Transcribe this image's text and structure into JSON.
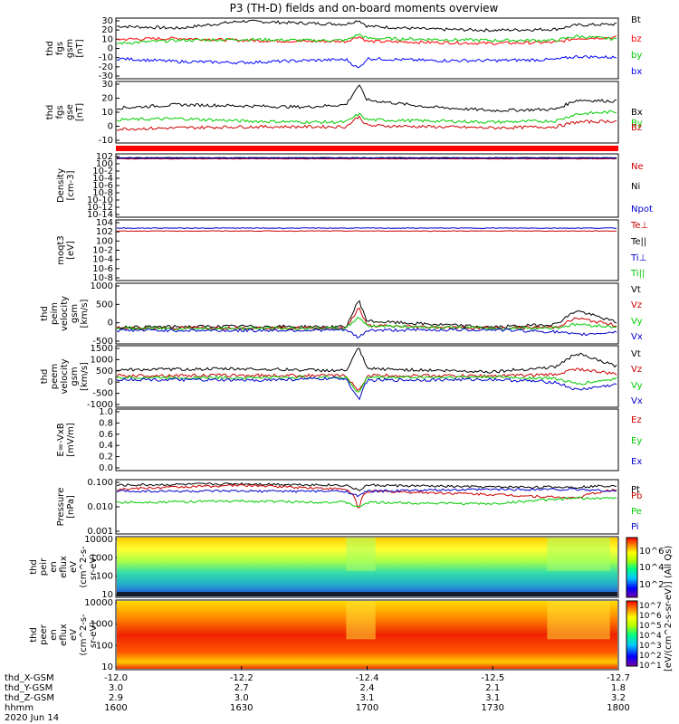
{
  "title": "P3 (TH-D) fields and on-board moments overview",
  "chart_data": {
    "type": "line",
    "title": "P3 (TH-D) fields and on-board moments overview",
    "panels": [
      {
        "id": "fgs_gsm",
        "ylabel": [
          "thd",
          "fgs",
          "gsm",
          "[nT]"
        ],
        "ylim": [
          -30,
          30
        ],
        "yticks": [
          "30",
          "20",
          "10",
          "0",
          "-10",
          "-20",
          "-30"
        ],
        "legend": [
          {
            "label": "Bt",
            "color": "#000000"
          },
          {
            "label": "bz",
            "color": "#ff0000"
          },
          {
            "label": "by",
            "color": "#00cc00"
          },
          {
            "label": "bx",
            "color": "#0000ff"
          }
        ],
        "series": [
          {
            "name": "Bt",
            "color": "#000000",
            "x": [
              "1600",
              "1615",
              "1630",
              "1645",
              "1655",
              "1658",
              "1700",
              "1715",
              "1730",
              "1745",
              "1750",
              "1800"
            ],
            "values": [
              22,
              20,
              27,
              25,
              24,
              28,
              22,
              19,
              18,
              19,
              23,
              24
            ]
          },
          {
            "name": "bz",
            "color": "#ff0000",
            "x": [
              "1600",
              "1615",
              "1630",
              "1645",
              "1655",
              "1658",
              "1700",
              "1715",
              "1730",
              "1745",
              "1750",
              "1800"
            ],
            "values": [
              9,
              10,
              8,
              7,
              7,
              12,
              7,
              6,
              5,
              6,
              10,
              11
            ]
          },
          {
            "name": "by",
            "color": "#00cc00",
            "x": [
              "1600",
              "1615",
              "1630",
              "1645",
              "1655",
              "1658",
              "1700",
              "1715",
              "1730",
              "1745",
              "1750",
              "1800"
            ],
            "values": [
              5,
              8,
              9,
              8,
              8,
              14,
              10,
              9,
              8,
              8,
              12,
              9
            ]
          },
          {
            "name": "bx",
            "color": "#0000ff",
            "x": [
              "1600",
              "1615",
              "1630",
              "1645",
              "1655",
              "1658",
              "1700",
              "1715",
              "1730",
              "1745",
              "1750",
              "1800"
            ],
            "values": [
              -10,
              -13,
              -14,
              -12,
              -11,
              -20,
              -10,
              -12,
              -12,
              -11,
              -8,
              -9
            ]
          }
        ]
      },
      {
        "id": "fgs_gse",
        "ylabel": [
          "thd",
          "fgs",
          "gse",
          "[nT]"
        ],
        "ylim": [
          -15,
          38
        ],
        "yticks": [
          "30",
          "20",
          "10",
          "0",
          "-10"
        ],
        "legend": [
          {
            "label": "Bx",
            "color": "#000000"
          },
          {
            "label": "By",
            "color": "#00cc00"
          },
          {
            "label": "Bz",
            "color": "#cc0000"
          }
        ],
        "series": [
          {
            "name": "Bx",
            "color": "#000000",
            "x": [
              "1600",
              "1615",
              "1630",
              "1645",
              "1655",
              "1658",
              "1700",
              "1715",
              "1730",
              "1745",
              "1750",
              "1800"
            ],
            "values": [
              15,
              18,
              17,
              16,
              18,
              35,
              22,
              16,
              13,
              14,
              22,
              21
            ]
          },
          {
            "name": "By",
            "color": "#00cc00",
            "x": [
              "1600",
              "1615",
              "1630",
              "1645",
              "1655",
              "1658",
              "1700",
              "1715",
              "1730",
              "1745",
              "1750",
              "1800"
            ],
            "values": [
              5,
              6,
              4,
              3,
              3,
              10,
              5,
              4,
              3,
              4,
              10,
              12
            ]
          },
          {
            "name": "Bz",
            "color": "#cc0000",
            "x": [
              "1600",
              "1615",
              "1630",
              "1645",
              "1655",
              "1658",
              "1700",
              "1715",
              "1730",
              "1745",
              "1750",
              "1800"
            ],
            "values": [
              -3,
              -2,
              -1,
              -1,
              -1,
              8,
              0,
              -1,
              -2,
              -1,
              3,
              4
            ]
          }
        ]
      },
      {
        "id": "density",
        "ylabel": [
          "Density",
          "[cm-3]"
        ],
        "log": true,
        "yticks": [
          "10^2",
          "10^0",
          "10^-2",
          "10^-4",
          "10^-6",
          "10^-8",
          "10^-10",
          "10^-12",
          "10^-14"
        ],
        "legend": [
          {
            "label": "Ne",
            "color": "#cc0000"
          },
          {
            "label": "Ni",
            "color": "#000000"
          },
          {
            "label": "Npot",
            "color": "#0000cc"
          }
        ],
        "series": [
          {
            "name": "Ne",
            "color": "#cc0000",
            "x": [
              "1600",
              "1800"
            ],
            "values": [
              10,
              10
            ]
          },
          {
            "name": "Ni",
            "color": "#000000",
            "x": [
              "1600",
              "1800"
            ],
            "values": [
              20,
              20
            ]
          },
          {
            "name": "Npot",
            "color": "#0000cc",
            "x": [
              "1600",
              "1800"
            ],
            "values": [
              15,
              15
            ]
          }
        ]
      },
      {
        "id": "temp",
        "ylabel": [
          "moqt3",
          "[eV]"
        ],
        "log": true,
        "yticks": [
          "10^4",
          "10^2",
          "10^0",
          "10^-2",
          "10^-4",
          "10^-6",
          "10^-8"
        ],
        "legend": [
          {
            "label": "Te⊥",
            "color": "#cc0000"
          },
          {
            "label": "Te||",
            "color": "#000000"
          },
          {
            "label": "Ti⊥",
            "color": "#0000cc"
          },
          {
            "label": "Ti||",
            "color": "#00cc00"
          }
        ],
        "series": [
          {
            "name": "Te⊥",
            "color": "#cc0000",
            "x": [
              "1600",
              "1800"
            ],
            "values": [
              100,
              100
            ]
          },
          {
            "name": "Ti⊥",
            "color": "#0000cc",
            "x": [
              "1600",
              "1800"
            ],
            "values": [
              400,
              400
            ]
          }
        ]
      },
      {
        "id": "peim_vel",
        "ylabel": [
          "thd",
          "peim",
          "velocity",
          "gsm",
          "[km/s]"
        ],
        "ylim": [
          -500,
          1500
        ],
        "yticks": [
          "1000",
          "500",
          "0",
          "-500"
        ],
        "legend": [
          {
            "label": "Vt",
            "color": "#000000"
          },
          {
            "label": "Vz",
            "color": "#cc0000"
          },
          {
            "label": "Vy",
            "color": "#00cc00"
          },
          {
            "label": "Vx",
            "color": "#0000cc"
          }
        ],
        "series": [
          {
            "name": "Vt",
            "color": "#000000",
            "x": [
              "1600",
              "1630",
              "1655",
              "1658",
              "1700",
              "1730",
              "1745",
              "1750",
              "1800"
            ],
            "values": [
              50,
              80,
              60,
              950,
              250,
              50,
              150,
              600,
              200
            ]
          },
          {
            "name": "Vz",
            "color": "#cc0000",
            "x": [
              "1600",
              "1630",
              "1655",
              "1658",
              "1700",
              "1730",
              "1745",
              "1750",
              "1800"
            ],
            "values": [
              20,
              30,
              20,
              700,
              100,
              20,
              50,
              350,
              100
            ]
          },
          {
            "name": "Vy",
            "color": "#00cc00",
            "x": [
              "1600",
              "1630",
              "1655",
              "1658",
              "1700",
              "1730",
              "1745",
              "1750",
              "1800"
            ],
            "values": [
              10,
              10,
              10,
              400,
              100,
              10,
              30,
              150,
              50
            ]
          },
          {
            "name": "Vx",
            "color": "#0000cc",
            "x": [
              "1600",
              "1630",
              "1655",
              "1658",
              "1700",
              "1730",
              "1745",
              "1750",
              "1800"
            ],
            "values": [
              -50,
              -60,
              -40,
              -300,
              -50,
              -30,
              -100,
              -200,
              -100
            ]
          }
        ]
      },
      {
        "id": "peem_vel",
        "ylabel": [
          "thd",
          "peem",
          "velocity",
          "gsm",
          "[km/s]"
        ],
        "ylim": [
          -1600,
          1600
        ],
        "yticks": [
          "1500",
          "1000",
          "500",
          "0",
          "-500",
          "-1000"
        ],
        "legend": [
          {
            "label": "Vt",
            "color": "#000000"
          },
          {
            "label": "Vz",
            "color": "#cc0000"
          },
          {
            "label": "Vy",
            "color": "#00cc00"
          },
          {
            "label": "Vx",
            "color": "#0000cc"
          }
        ],
        "series": [
          {
            "name": "Vt",
            "color": "#000000",
            "x": [
              "1600",
              "1630",
              "1655",
              "1658",
              "1700",
              "1730",
              "1745",
              "1750",
              "1800"
            ],
            "values": [
              350,
              400,
              300,
              1500,
              400,
              250,
              500,
              1200,
              500
            ]
          },
          {
            "name": "Vz",
            "color": "#cc0000",
            "x": [
              "1600",
              "1630",
              "1655",
              "1658",
              "1700",
              "1730",
              "1745",
              "1750",
              "1800"
            ],
            "values": [
              50,
              60,
              40,
              -800,
              50,
              30,
              100,
              400,
              100
            ]
          },
          {
            "name": "Vy",
            "color": "#00cc00",
            "x": [
              "1600",
              "1630",
              "1655",
              "1658",
              "1700",
              "1730",
              "1745",
              "1750",
              "1800"
            ],
            "values": [
              -50,
              -60,
              -40,
              -900,
              -50,
              -30,
              -100,
              -400,
              -100
            ]
          },
          {
            "name": "Vx",
            "color": "#0000cc",
            "x": [
              "1600",
              "1630",
              "1655",
              "1658",
              "1700",
              "1730",
              "1745",
              "1750",
              "1800"
            ],
            "values": [
              -150,
              -200,
              -100,
              -1200,
              -200,
              -150,
              -300,
              -700,
              -400
            ]
          }
        ]
      },
      {
        "id": "efield",
        "ylabel": [
          "E=-VxB",
          "[mV/m]"
        ],
        "ylim": [
          0,
          1
        ],
        "yticks": [
          "1.0",
          "0.8",
          "0.6",
          "0.4",
          "0.2",
          "0.0"
        ],
        "legend": [
          {
            "label": "Ez",
            "color": "#cc0000"
          },
          {
            "label": "Ey",
            "color": "#00cc00"
          },
          {
            "label": "Ex",
            "color": "#0000cc"
          }
        ],
        "series": []
      },
      {
        "id": "pressure",
        "ylabel": [
          "Pressure",
          "[nPa]"
        ],
        "log": true,
        "yticks": [
          "0.100",
          "0.010",
          "0.001"
        ],
        "legend": [
          {
            "label": "Pt",
            "color": "#000000"
          },
          {
            "label": "Pb",
            "color": "#cc0000"
          },
          {
            "label": "Pe",
            "color": "#00cc00"
          },
          {
            "label": "Pi",
            "color": "#0000cc"
          }
        ],
        "series": [
          {
            "name": "Pt",
            "color": "#000000",
            "x": [
              "1600",
              "1630",
              "1655",
              "1658",
              "1700",
              "1730",
              "1750",
              "1800"
            ],
            "values": [
              0.25,
              0.3,
              0.25,
              0.12,
              0.25,
              0.2,
              0.2,
              0.25
            ]
          },
          {
            "name": "Pb",
            "color": "#cc0000",
            "x": [
              "1600",
              "1630",
              "1655",
              "1658",
              "1700",
              "1730",
              "1750",
              "1800"
            ],
            "values": [
              0.15,
              0.25,
              0.15,
              0.005,
              0.12,
              0.08,
              0.05,
              0.15
            ]
          },
          {
            "name": "Pe",
            "color": "#00cc00",
            "x": [
              "1600",
              "1630",
              "1655",
              "1658",
              "1700",
              "1730",
              "1750",
              "1800"
            ],
            "values": [
              0.03,
              0.035,
              0.03,
              0.015,
              0.03,
              0.025,
              0.05,
              0.05
            ]
          },
          {
            "name": "Pi",
            "color": "#0000cc",
            "x": [
              "1600",
              "1630",
              "1655",
              "1658",
              "1700",
              "1730",
              "1750",
              "1800"
            ],
            "values": [
              0.12,
              0.12,
              0.12,
              0.06,
              0.12,
              0.15,
              0.15,
              0.12
            ]
          }
        ]
      },
      {
        "id": "peir_spec",
        "type": "heatmap",
        "ylabel": [
          "thd",
          "peir",
          "en",
          "eflux",
          "eV",
          "(cm^2-s-",
          "sr-eV)"
        ],
        "yticks": [
          "10000",
          "1000",
          "100",
          "10"
        ]
      },
      {
        "id": "peer_spec",
        "type": "heatmap",
        "ylabel": [
          "thd",
          "peer",
          "en",
          "eflux",
          "eV",
          "(cm^2-s-",
          "sr-eV)"
        ],
        "yticks": [
          "10000",
          "1000",
          "100",
          "10"
        ]
      }
    ],
    "colorbar1": {
      "ticks": [
        "10^6",
        "10^4",
        "10^2"
      ],
      "label": "[eV/(cm^2-s-sr-eV)] (All Qs)"
    },
    "colorbar2": {
      "ticks": [
        "10^7",
        "10^6",
        "10^5",
        "10^4",
        "10^3",
        "10^2",
        "10^1"
      ]
    },
    "x_axis": {
      "rows": [
        {
          "label": "thd_X-GSM",
          "values": [
            "-12.0",
            "-12.2",
            "-12.4",
            "-12.5",
            "-12.7"
          ]
        },
        {
          "label": "thd_Y-GSM",
          "values": [
            "3.0",
            "2.7",
            "2.4",
            "2.1",
            "1.8"
          ]
        },
        {
          "label": "thd_Z-GSM",
          "values": [
            "2.9",
            "3.0",
            "3.1",
            "3.1",
            "3.2"
          ]
        },
        {
          "label": "hhmm",
          "values": [
            "1600",
            "1630",
            "1700",
            "1730",
            "1800"
          ]
        }
      ],
      "date": "2020 Jun 14"
    }
  }
}
